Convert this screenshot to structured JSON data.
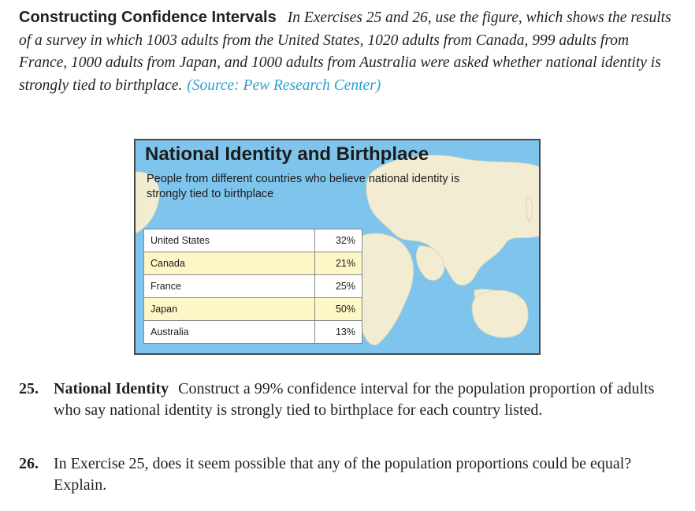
{
  "intro": {
    "heading": "Constructing Confidence Intervals",
    "text": "In Exercises 25 and 26, use the figure, which shows the results of a survey in which 1003 adults from the United States, 1020 adults from Canada, 999 adults from France, 1000 adults from Japan, and 1000 adults from Australia were asked whether national identity is strongly tied to birthplace.",
    "source": "(Source: Pew Research Center)"
  },
  "figure": {
    "title": "National Identity and Birthplace",
    "subtitle": "People from different countries who believe national identity is strongly tied to birthplace",
    "colors": {
      "ocean": "#7fc4ec",
      "land": "#f1ecd2",
      "row_alt": "#fdf6c6"
    },
    "rows": [
      {
        "country": "United States",
        "value": "32%"
      },
      {
        "country": "Canada",
        "value": "21%"
      },
      {
        "country": "France",
        "value": "25%"
      },
      {
        "country": "Japan",
        "value": "50%"
      },
      {
        "country": "Australia",
        "value": "13%"
      }
    ]
  },
  "exercises": [
    {
      "number": "25.",
      "title": "National Identity",
      "text": "Construct a 99% confidence interval for the population proportion of adults who say national identity is strongly tied to birthplace for each country listed."
    },
    {
      "number": "26.",
      "title": "",
      "text": "In Exercise 25, does it seem possible that any of the population proportions could be equal? Explain."
    }
  ]
}
